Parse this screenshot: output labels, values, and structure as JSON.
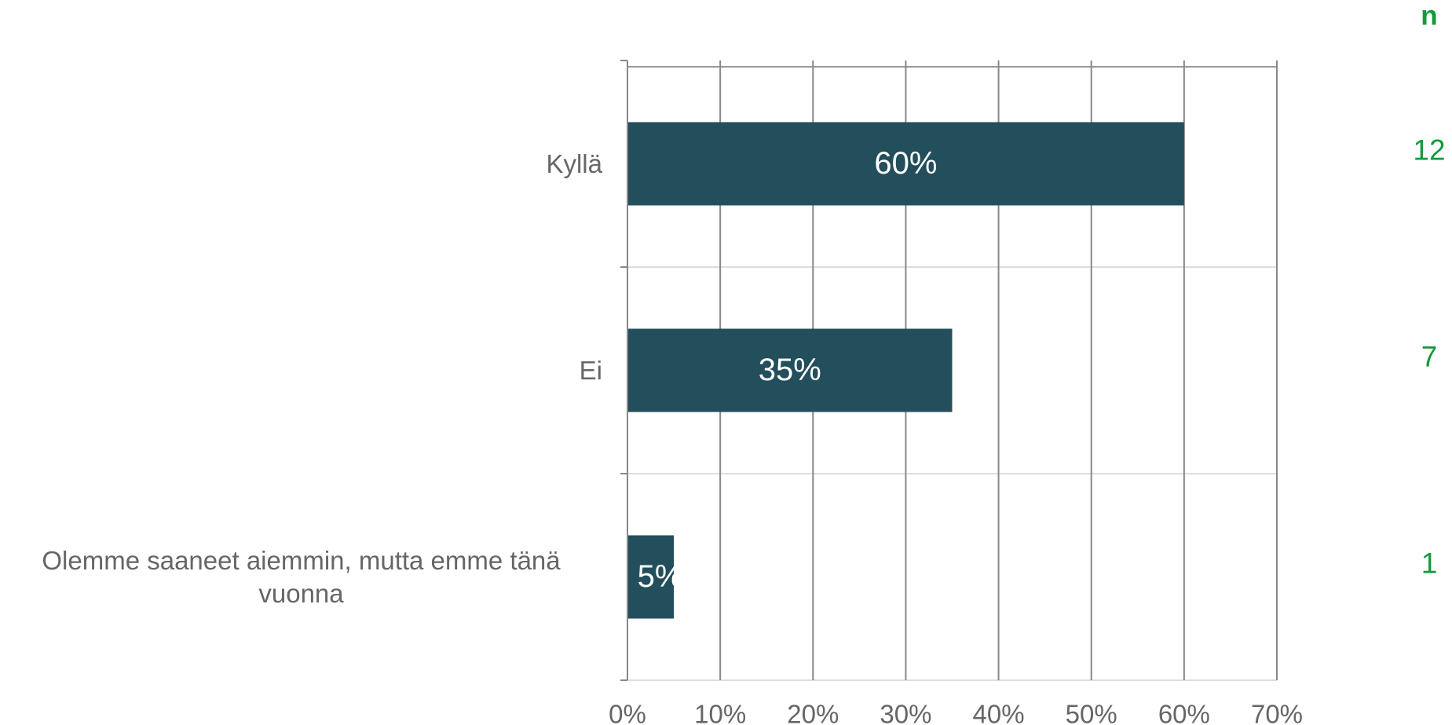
{
  "chart_data": {
    "type": "bar",
    "orientation": "horizontal",
    "categories": [
      "Kyllä",
      "Ei",
      "Olemme saaneet aiemmin, mutta emme tänä vuonna"
    ],
    "values": [
      60,
      35,
      5
    ],
    "value_labels": [
      "60%",
      "35%",
      "5%"
    ],
    "color": "#234e5c",
    "xlim": [
      0,
      70
    ],
    "xticks": [
      {
        "value": 0,
        "label": "0%"
      },
      {
        "value": 10,
        "label": "10%"
      },
      {
        "value": 20,
        "label": "20%"
      },
      {
        "value": 30,
        "label": "30%"
      },
      {
        "value": 40,
        "label": "40%"
      },
      {
        "value": 50,
        "label": "50%"
      },
      {
        "value": 60,
        "label": "60%"
      },
      {
        "value": 70,
        "label": "70%"
      }
    ],
    "grid": true,
    "n_label": "n",
    "counts": [
      12,
      7,
      1
    ]
  }
}
